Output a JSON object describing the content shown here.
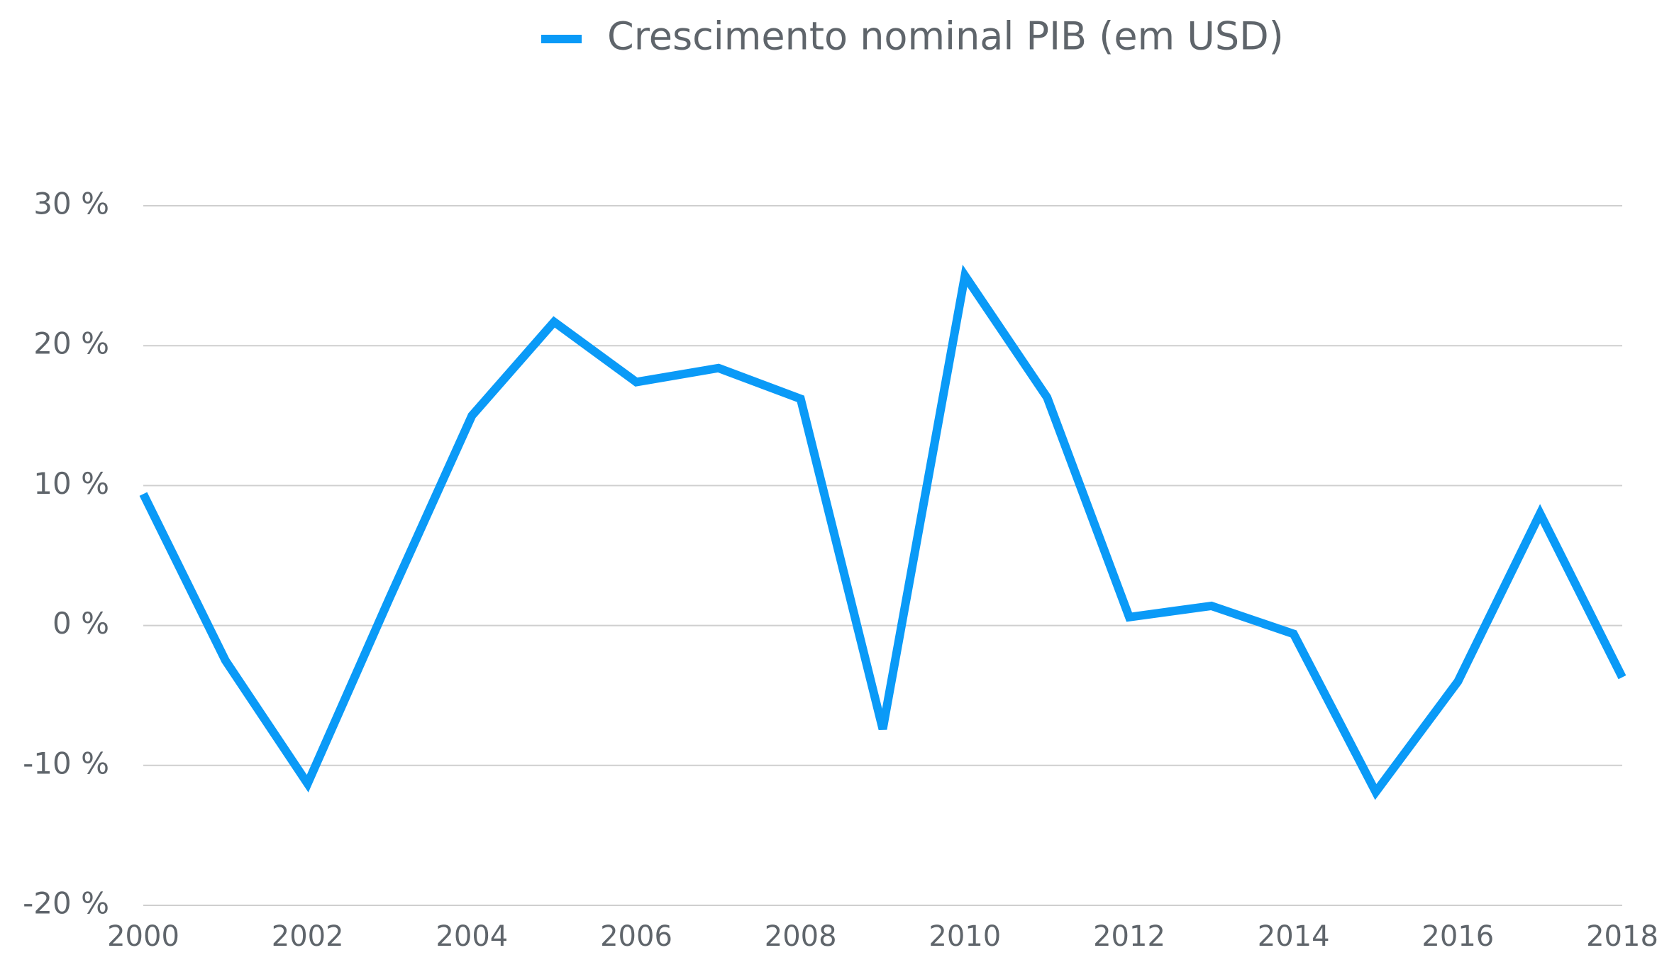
{
  "chart_data": {
    "type": "line",
    "x": [
      2000,
      2001,
      2002,
      2003,
      2004,
      2005,
      2006,
      2007,
      2008,
      2009,
      2010,
      2011,
      2012,
      2013,
      2014,
      2015,
      2016,
      2017,
      2018
    ],
    "series": [
      {
        "name": "Crescimento nominal PIB (em USD)",
        "color": "#0a9af7",
        "values": [
          9.4,
          -2.5,
          -11.3,
          2.0,
          15.0,
          21.7,
          17.4,
          18.4,
          16.2,
          -7.4,
          25.0,
          16.3,
          0.6,
          1.4,
          -0.6,
          -11.9,
          -4.0,
          8.0,
          -3.7
        ]
      }
    ],
    "xlim": [
      2000,
      2018
    ],
    "xticks": [
      2000,
      2002,
      2004,
      2006,
      2008,
      2010,
      2012,
      2014,
      2016,
      2018
    ],
    "ylim": [
      -20,
      30
    ],
    "yticks": [
      {
        "value": -20,
        "label": "-20 %"
      },
      {
        "value": -10,
        "label": "-10 %"
      },
      {
        "value": 0,
        "label": "0 %"
      },
      {
        "value": 10,
        "label": "10 %"
      },
      {
        "value": 20,
        "label": "20 %"
      },
      {
        "value": 30,
        "label": "30 %"
      }
    ],
    "grid": true,
    "legend": "top"
  }
}
